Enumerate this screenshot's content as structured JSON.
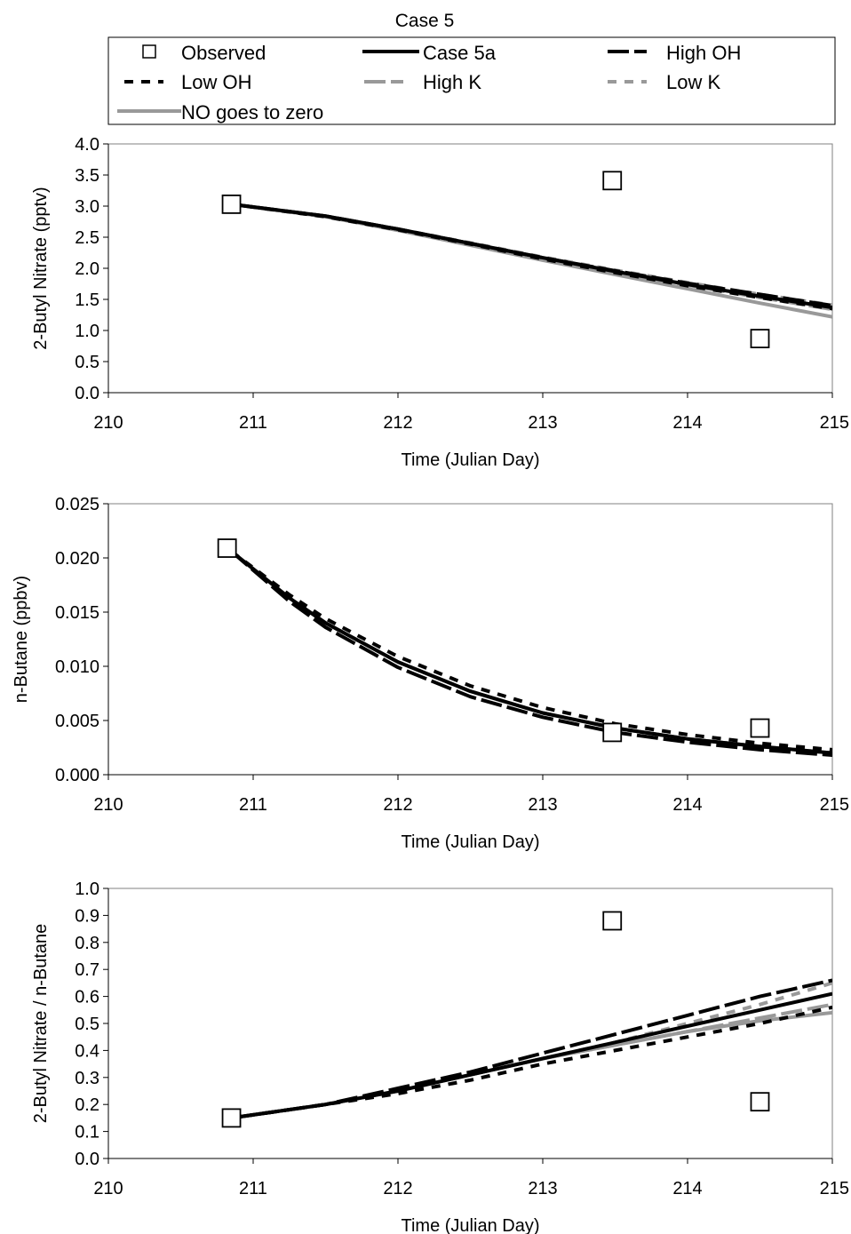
{
  "figure": {
    "title": "Case 5",
    "legend": [
      {
        "key": "observed",
        "label": "Observed"
      },
      {
        "key": "case5a",
        "label": "Case 5a"
      },
      {
        "key": "highOH",
        "label": "High OH"
      },
      {
        "key": "lowOH",
        "label": "Low OH"
      },
      {
        "key": "highK",
        "label": "High K"
      },
      {
        "key": "lowK",
        "label": "Low K"
      },
      {
        "key": "nozero",
        "label": "NO goes to zero"
      }
    ],
    "styles": {
      "observed": {
        "color": "#000000"
      },
      "case5a": {
        "color": "#000000",
        "dash": "none"
      },
      "highOH": {
        "color": "#000000",
        "dash": "24,6"
      },
      "lowOH": {
        "color": "#000000",
        "dash": "10,9"
      },
      "highK": {
        "color": "#999999",
        "dash": "24,6"
      },
      "lowK": {
        "color": "#999999",
        "dash": "10,9"
      },
      "nozero": {
        "color": "#999999",
        "dash": "none"
      }
    }
  },
  "chart_data": [
    {
      "type": "line",
      "xlabel": "Time (Julian Day)",
      "ylabel": "2-Butyl Nitrate (pptv)",
      "xlim": [
        210,
        215
      ],
      "ylim": [
        0,
        4
      ],
      "xticks": [
        "210",
        "211",
        "212",
        "213",
        "214",
        "215"
      ],
      "yticks": [
        "0.0",
        "0.5",
        "1.0",
        "1.5",
        "2.0",
        "2.5",
        "3.0",
        "3.5",
        "4.0"
      ],
      "grid": false,
      "observed": {
        "x": [
          210.85,
          213.48,
          214.5
        ],
        "y": [
          3.03,
          3.41,
          0.87
        ]
      },
      "series": [
        {
          "key": "case5a",
          "x": [
            210.85,
            211.5,
            212,
            212.5,
            213,
            213.5,
            214,
            214.5,
            215
          ],
          "y": [
            3.03,
            2.84,
            2.63,
            2.4,
            2.17,
            1.95,
            1.74,
            1.55,
            1.37
          ]
        },
        {
          "key": "highOH",
          "x": [
            210.85,
            211.5,
            212,
            212.5,
            213,
            213.5,
            214,
            214.5,
            215
          ],
          "y": [
            3.03,
            2.84,
            2.63,
            2.4,
            2.17,
            1.96,
            1.76,
            1.58,
            1.4
          ]
        },
        {
          "key": "lowOH",
          "x": [
            210.85,
            211.5,
            212,
            212.5,
            213,
            213.5,
            214,
            214.5,
            215
          ],
          "y": [
            3.03,
            2.83,
            2.62,
            2.39,
            2.15,
            1.93,
            1.72,
            1.53,
            1.35
          ]
        },
        {
          "key": "highK",
          "x": [
            210.85,
            211.5,
            212,
            212.5,
            213,
            213.5,
            214,
            214.5,
            215
          ],
          "y": [
            3.03,
            2.83,
            2.62,
            2.39,
            2.16,
            1.94,
            1.73,
            1.53,
            1.34
          ]
        },
        {
          "key": "lowK",
          "x": [
            210.85,
            211.5,
            212,
            212.5,
            213,
            213.5,
            214,
            214.5,
            215
          ],
          "y": [
            3.03,
            2.84,
            2.63,
            2.41,
            2.18,
            1.97,
            1.77,
            1.58,
            1.41
          ]
        },
        {
          "key": "nozero",
          "x": [
            210.85,
            211.5,
            212,
            212.5,
            213,
            213.5,
            214,
            214.5,
            215
          ],
          "y": [
            3.03,
            2.83,
            2.61,
            2.37,
            2.13,
            1.9,
            1.67,
            1.44,
            1.22
          ]
        }
      ]
    },
    {
      "type": "line",
      "xlabel": "Time (Julian Day)",
      "ylabel": "n-Butane (ppbv)",
      "xlim": [
        210,
        215
      ],
      "ylim": [
        0,
        0.025
      ],
      "xticks": [
        "210",
        "211",
        "212",
        "213",
        "214",
        "215"
      ],
      "yticks": [
        "0.000",
        "0.005",
        "0.010",
        "0.015",
        "0.020",
        "0.025"
      ],
      "grid": false,
      "observed": {
        "x": [
          210.82,
          213.48,
          214.5
        ],
        "y": [
          0.0209,
          0.0039,
          0.0043
        ]
      },
      "series": [
        {
          "key": "case5a",
          "x": [
            210.85,
            211.25,
            211.5,
            212,
            212.5,
            213,
            213.5,
            214,
            214.5,
            215
          ],
          "y": [
            0.0206,
            0.0163,
            0.014,
            0.0104,
            0.0077,
            0.0057,
            0.0043,
            0.0033,
            0.0026,
            0.002
          ]
        },
        {
          "key": "highOH",
          "x": [
            210.85,
            211.25,
            211.5,
            212,
            212.5,
            213,
            213.5,
            214,
            214.5,
            215
          ],
          "y": [
            0.0206,
            0.016,
            0.0136,
            0.0099,
            0.0072,
            0.0053,
            0.0039,
            0.003,
            0.0023,
            0.0018
          ]
        },
        {
          "key": "lowOH",
          "x": [
            210.85,
            211.25,
            211.5,
            212,
            212.5,
            213,
            213.5,
            214,
            214.5,
            215
          ],
          "y": [
            0.0206,
            0.0166,
            0.0144,
            0.0109,
            0.0082,
            0.0062,
            0.0047,
            0.0037,
            0.0029,
            0.0023
          ]
        },
        {
          "key": "highK",
          "x": [
            210.85,
            211.25,
            211.5,
            212,
            212.5,
            213,
            213.5,
            214,
            214.5,
            215
          ],
          "y": [
            0.0206,
            0.0163,
            0.014,
            0.0104,
            0.0077,
            0.0057,
            0.0043,
            0.0033,
            0.0026,
            0.002
          ]
        },
        {
          "key": "lowK",
          "x": [
            210.85,
            211.25,
            211.5,
            212,
            212.5,
            213,
            213.5,
            214,
            214.5,
            215
          ],
          "y": [
            0.0206,
            0.0163,
            0.014,
            0.0104,
            0.0077,
            0.0057,
            0.0043,
            0.0033,
            0.0026,
            0.002
          ]
        },
        {
          "key": "nozero",
          "x": [
            210.85,
            211.25,
            211.5,
            212,
            212.5,
            213,
            213.5,
            214,
            214.5,
            215
          ],
          "y": [
            0.0206,
            0.0163,
            0.014,
            0.0104,
            0.0077,
            0.0057,
            0.0043,
            0.0033,
            0.0026,
            0.002
          ]
        }
      ]
    },
    {
      "type": "line",
      "xlabel": "Time (Julian Day)",
      "ylabel": "2-Butyl Nitrate / n-Butane",
      "xlim": [
        210,
        215
      ],
      "ylim": [
        0,
        1
      ],
      "xticks": [
        "210",
        "211",
        "212",
        "213",
        "214",
        "215"
      ],
      "yticks": [
        "0.0",
        "0.1",
        "0.2",
        "0.3",
        "0.4",
        "0.5",
        "0.6",
        "0.7",
        "0.8",
        "0.9",
        "1.0"
      ],
      "grid": false,
      "observed": {
        "x": [
          210.85,
          213.48,
          214.5
        ],
        "y": [
          0.15,
          0.88,
          0.21
        ]
      },
      "series": [
        {
          "key": "case5a",
          "x": [
            210.85,
            211.5,
            212,
            212.5,
            213,
            213.5,
            214,
            214.5,
            215
          ],
          "y": [
            0.15,
            0.2,
            0.25,
            0.31,
            0.37,
            0.43,
            0.49,
            0.55,
            0.61
          ]
        },
        {
          "key": "highOH",
          "x": [
            210.85,
            211.5,
            212,
            212.5,
            213,
            213.5,
            214,
            214.5,
            215
          ],
          "y": [
            0.15,
            0.2,
            0.26,
            0.32,
            0.39,
            0.46,
            0.53,
            0.6,
            0.66
          ]
        },
        {
          "key": "lowOH",
          "x": [
            210.85,
            211.5,
            212,
            212.5,
            213,
            213.5,
            214,
            214.5,
            215
          ],
          "y": [
            0.15,
            0.2,
            0.24,
            0.29,
            0.35,
            0.4,
            0.45,
            0.5,
            0.56
          ]
        },
        {
          "key": "highK",
          "x": [
            210.85,
            211.5,
            212,
            212.5,
            213,
            213.5,
            214,
            214.5,
            215
          ],
          "y": [
            0.15,
            0.2,
            0.25,
            0.31,
            0.37,
            0.42,
            0.47,
            0.52,
            0.57
          ]
        },
        {
          "key": "lowK",
          "x": [
            210.85,
            211.5,
            212,
            212.5,
            213,
            213.5,
            214,
            214.5,
            215
          ],
          "y": [
            0.15,
            0.2,
            0.25,
            0.31,
            0.37,
            0.43,
            0.5,
            0.57,
            0.65
          ]
        },
        {
          "key": "nozero",
          "x": [
            210.85,
            211.5,
            212,
            212.5,
            213,
            213.5,
            214,
            214.5,
            215
          ],
          "y": [
            0.15,
            0.2,
            0.25,
            0.31,
            0.37,
            0.42,
            0.47,
            0.51,
            0.54
          ]
        }
      ]
    }
  ]
}
